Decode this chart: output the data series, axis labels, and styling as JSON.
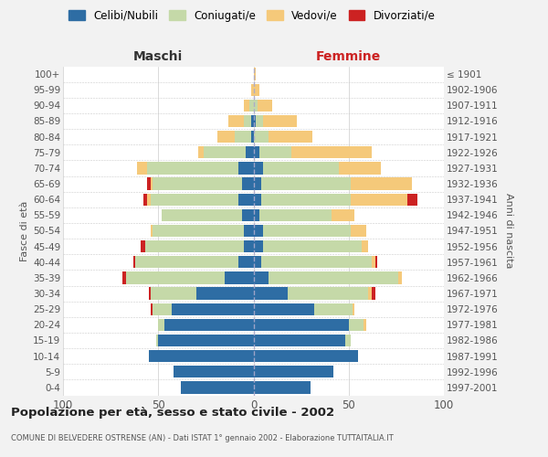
{
  "age_groups": [
    "0-4",
    "5-9",
    "10-14",
    "15-19",
    "20-24",
    "25-29",
    "30-34",
    "35-39",
    "40-44",
    "45-49",
    "50-54",
    "55-59",
    "60-64",
    "65-69",
    "70-74",
    "75-79",
    "80-84",
    "85-89",
    "90-94",
    "95-99",
    "100+"
  ],
  "birth_years": [
    "1997-2001",
    "1992-1996",
    "1987-1991",
    "1982-1986",
    "1977-1981",
    "1972-1976",
    "1967-1971",
    "1962-1966",
    "1957-1961",
    "1952-1956",
    "1947-1951",
    "1942-1946",
    "1937-1941",
    "1932-1936",
    "1927-1931",
    "1922-1926",
    "1917-1921",
    "1912-1916",
    "1907-1911",
    "1902-1906",
    "≤ 1901"
  ],
  "maschi": {
    "celibi": [
      38,
      42,
      55,
      50,
      47,
      43,
      30,
      15,
      8,
      5,
      5,
      6,
      8,
      6,
      8,
      4,
      1,
      1,
      0,
      0,
      0
    ],
    "coniugati": [
      0,
      0,
      0,
      1,
      3,
      10,
      24,
      52,
      54,
      52,
      48,
      42,
      46,
      47,
      48,
      22,
      9,
      4,
      2,
      0,
      0
    ],
    "vedovi": [
      0,
      0,
      0,
      0,
      0,
      0,
      0,
      0,
      0,
      0,
      1,
      0,
      2,
      1,
      5,
      3,
      9,
      8,
      3,
      1,
      0
    ],
    "divorziati": [
      0,
      0,
      0,
      0,
      0,
      1,
      1,
      2,
      1,
      2,
      0,
      0,
      2,
      2,
      0,
      0,
      0,
      0,
      0,
      0,
      0
    ]
  },
  "femmine": {
    "nubili": [
      30,
      42,
      55,
      48,
      50,
      32,
      18,
      8,
      4,
      5,
      5,
      3,
      4,
      4,
      5,
      3,
      0,
      1,
      0,
      0,
      0
    ],
    "coniugate": [
      0,
      0,
      0,
      3,
      8,
      20,
      42,
      68,
      58,
      52,
      46,
      38,
      47,
      47,
      40,
      17,
      8,
      4,
      2,
      0,
      0
    ],
    "vedove": [
      0,
      0,
      0,
      0,
      1,
      1,
      2,
      2,
      2,
      3,
      8,
      12,
      30,
      32,
      22,
      42,
      23,
      18,
      8,
      3,
      1
    ],
    "divorziate": [
      0,
      0,
      0,
      0,
      0,
      0,
      2,
      0,
      1,
      0,
      0,
      0,
      5,
      0,
      0,
      0,
      0,
      0,
      0,
      0,
      0
    ]
  },
  "colors": {
    "celibi": "#2E6DA4",
    "coniugati": "#C5D9A8",
    "vedovi": "#F5C97A",
    "divorziati": "#CC2222"
  },
  "legend_labels": [
    "Celibi/Nubili",
    "Coniugati/e",
    "Vedovi/e",
    "Divorziati/e"
  ],
  "title": "Popolazione per età, sesso e stato civile - 2002",
  "subtitle": "COMUNE DI BELVEDERE OSTRENSE (AN) - Dati ISTAT 1° gennaio 2002 - Elaborazione TUTTAITALIA.IT",
  "xlabel_left": "Maschi",
  "xlabel_right": "Femmine",
  "ylabel_left": "Fasce di età",
  "ylabel_right": "Anni di nascita",
  "xlim": 100,
  "bg_color": "#F2F2F2",
  "plot_bg": "#FFFFFF"
}
